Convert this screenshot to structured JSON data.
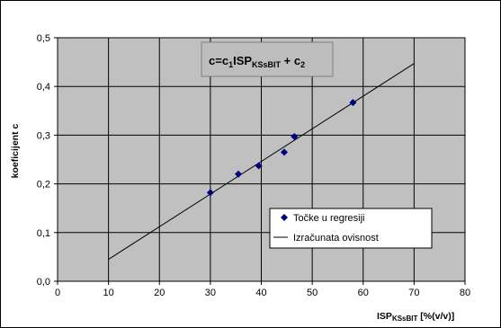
{
  "chart_data": {
    "type": "scatter",
    "xlabel_main": "ISP",
    "xlabel_sub": "KSsBIT",
    "xlabel_unit": " [%(v/v)]",
    "ylabel": "koeficijent c",
    "equation": {
      "p1": "c=c",
      "sub1": "1",
      "p2": "ISP",
      "sub2": "KSsBIT",
      "p3": " + c",
      "sub3": "2"
    },
    "xlim": [
      0,
      80
    ],
    "ylim": [
      0,
      0.5
    ],
    "x_ticks": [
      "0",
      "10",
      "20",
      "30",
      "40",
      "50",
      "60",
      "70",
      "80"
    ],
    "y_ticks": [
      "0,0",
      "0,1",
      "0,2",
      "0,3",
      "0,4",
      "0,5"
    ],
    "grid": true,
    "legend_position": "lower-right",
    "series": [
      {
        "name": "Točke u regresiji",
        "kind": "scatter",
        "color": "#00007f",
        "x": [
          30,
          35.5,
          39.5,
          44.5,
          46.5,
          58
        ],
        "y": [
          0.182,
          0.22,
          0.237,
          0.265,
          0.297,
          0.367
        ]
      },
      {
        "name": "Izračunata ovisnost",
        "kind": "line",
        "color": "#000000",
        "x": [
          10,
          70
        ],
        "y": [
          0.045,
          0.447
        ]
      }
    ],
    "plot_bg": "#c0c0c0"
  }
}
